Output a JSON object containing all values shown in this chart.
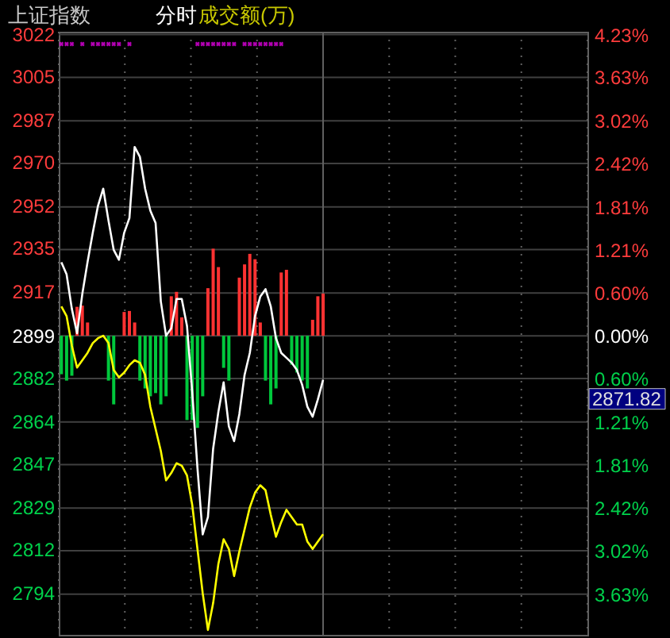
{
  "chart_data": {
    "type": "line",
    "title": "上证指数",
    "subtitle": "分时",
    "annotations": [
      "成交额(万)",
      "2871.82"
    ],
    "categories": [
      null,
      null,
      null,
      null,
      null,
      null,
      null,
      null,
      null,
      null,
      null,
      null,
      null,
      null,
      null,
      null,
      null,
      null,
      null,
      null,
      null,
      null,
      null,
      null,
      null,
      null,
      null,
      null,
      null,
      null,
      null,
      null,
      null,
      null,
      null,
      null,
      null,
      null,
      null,
      null,
      null,
      null,
      null,
      null,
      null,
      null,
      null,
      null,
      null,
      null,
      null,
      null,
      null,
      null,
      null,
      null,
      null,
      null,
      null,
      null,
      null,
      null,
      null,
      null,
      null,
      null,
      null,
      null,
      null,
      null,
      null,
      null,
      null,
      null,
      null,
      null,
      null,
      null,
      null,
      null,
      null,
      null,
      null,
      null,
      null,
      null,
      null,
      null,
      null,
      null,
      null,
      null,
      null,
      null,
      null,
      null,
      null,
      null,
      null,
      null,
      null
    ],
    "ylim": [
      2777,
      3023
    ],
    "yticks": [
      3022,
      3005,
      2987,
      2970,
      2952,
      2935,
      2917,
      2899,
      2882,
      2864,
      2847,
      2829,
      2812,
      2794
    ],
    "y2lim": [
      -4.2,
      4.27
    ],
    "y2ticks": [
      {
        "value": 4.23,
        "label": "4.23%"
      },
      {
        "value": 3.63,
        "label": "3.63%"
      },
      {
        "value": 3.02,
        "label": "3.02%"
      },
      {
        "value": 2.42,
        "label": "2.42%"
      },
      {
        "value": 1.81,
        "label": "1.81%"
      },
      {
        "value": 1.21,
        "label": "1.21%"
      },
      {
        "value": 0.6,
        "label": "0.60%"
      },
      {
        "value": 0,
        "label": "0.00%"
      },
      {
        "value": -0.6,
        "label": "0.60%"
      },
      {
        "value": -1.21,
        "label": "1.21%"
      },
      {
        "value": -1.81,
        "label": "1.81%"
      },
      {
        "value": -2.42,
        "label": "2.42%"
      },
      {
        "value": -3.02,
        "label": "3.02%"
      },
      {
        "value": -3.63,
        "label": "3.63%"
      }
    ],
    "grid": true,
    "tick_labels": "y",
    "line_style": "solid",
    "series": [
      {
        "type": "bar",
        "values": [
          -15.7,
          -18.3,
          -16.3,
          11.8,
          12.3,
          5.4,
          null,
          null,
          null,
          -18.3,
          -28.0,
          null,
          9.7,
          10.1,
          5.4,
          -18.3,
          -21.5,
          -24.7,
          -23.4,
          -28.0,
          -24.7,
          16.1,
          17.9,
          7.5,
          -34.4,
          -34.4,
          -37.6,
          -24.7,
          19.4,
          35.5,
          28.0,
          -13.1,
          -18.3,
          null,
          23.7,
          29.1,
          33.4,
          31.2,
          5.4,
          -18.3,
          -28.0,
          -21.5,
          25.8,
          26.9,
          -11.8,
          -15.0,
          -18.3,
          -21.5,
          6.5,
          16.1,
          17.2,
          null,
          null,
          null,
          null,
          null,
          null,
          null,
          null,
          null,
          null,
          null,
          null,
          null,
          null,
          null,
          null,
          null,
          null,
          null,
          null,
          null,
          null,
          null,
          null,
          null,
          null,
          null,
          null,
          null,
          null,
          null,
          null,
          null,
          null,
          null,
          null,
          null,
          null,
          null,
          null,
          null,
          null,
          null,
          null,
          null,
          null,
          null,
          null,
          null,
          null
        ],
        "base": [
          2899,
          2899,
          2899,
          2899,
          2899,
          2899,
          null,
          null,
          null,
          2899,
          2899,
          null,
          2899,
          2899,
          2899,
          2899,
          2899,
          2899,
          2899,
          2899,
          2899,
          2899,
          2899,
          2899,
          2899,
          2899,
          2899,
          2899,
          2899,
          2899,
          2899,
          2899,
          2899,
          null,
          2899,
          2899,
          2899,
          2899,
          2899,
          2899,
          2899,
          2899,
          2899,
          2899,
          2899,
          2899,
          2899,
          2899,
          2899,
          2899,
          2899,
          null,
          null,
          null,
          null,
          null,
          null,
          null,
          null,
          null,
          null,
          null,
          null,
          null,
          null,
          null,
          null,
          null,
          null,
          null,
          null,
          null,
          null,
          null,
          null,
          null,
          null,
          null,
          null,
          null,
          null,
          null,
          null,
          null,
          null,
          null,
          null,
          null,
          null,
          null,
          null,
          null,
          null,
          null,
          null,
          null,
          null,
          null,
          null,
          null,
          null
        ],
        "colors": [
          "#00c83c",
          "#00c83c",
          "#00c83c",
          "#ff3232",
          "#ff3232",
          "#ff3232",
          null,
          null,
          null,
          "#00c83c",
          "#00c83c",
          null,
          "#ff3232",
          "#ff3232",
          "#ff3232",
          "#00c83c",
          "#00c83c",
          "#00c83c",
          "#00c83c",
          "#00c83c",
          "#00c83c",
          "#ff3232",
          "#ff3232",
          "#ff3232",
          "#00c83c",
          "#00c83c",
          "#00c83c",
          "#00c83c",
          "#ff3232",
          "#ff3232",
          "#ff3232",
          "#00c83c",
          "#00c83c",
          null,
          "#ff3232",
          "#ff3232",
          "#ff3232",
          "#ff3232",
          "#ff3232",
          "#00c83c",
          "#00c83c",
          "#00c83c",
          "#ff3232",
          "#ff3232",
          "#00c83c",
          "#00c83c",
          "#00c83c",
          "#00c83c",
          "#ff3232",
          "#ff3232",
          "#ff3232",
          null,
          null,
          null,
          null,
          null,
          null,
          null,
          null,
          null,
          null,
          null,
          null,
          null,
          null,
          null,
          null,
          null,
          null,
          null,
          null,
          null,
          null,
          null,
          null,
          null,
          null,
          null,
          null,
          null,
          null,
          null,
          null,
          null,
          null,
          null,
          null,
          null,
          null,
          null,
          null,
          null,
          null,
          null,
          null,
          null,
          null,
          null,
          null,
          null,
          null
        ]
      },
      {
        "color": "#ffffff",
        "values": [
          2929,
          2924,
          2910,
          2900,
          2916,
          2929,
          2941,
          2952,
          2959,
          2946,
          2934,
          2930,
          2941,
          2947,
          2976,
          2972,
          2959,
          2950,
          2945,
          2913,
          2899,
          2902,
          2914,
          2914,
          2903,
          2876,
          2845,
          2818,
          2825,
          2853,
          2868,
          2880,
          2862,
          2856,
          2867,
          2883,
          2892,
          2907,
          2915,
          2918,
          2911,
          2898,
          2892,
          2890,
          2888,
          2885,
          2879,
          2870,
          2866,
          2873,
          2881,
          null,
          null,
          null,
          null,
          null,
          null,
          null,
          null,
          null,
          null,
          null,
          null,
          null,
          null,
          null,
          null,
          null,
          null,
          null,
          null,
          null,
          null,
          null,
          null,
          null,
          null,
          null,
          null,
          null,
          null,
          null,
          null,
          null,
          null,
          null,
          null,
          null,
          null,
          null,
          null,
          null,
          null,
          null,
          null,
          null,
          null,
          null,
          null,
          null,
          null
        ]
      },
      {
        "color": "#ffff00",
        "values": [
          2911,
          2907,
          2895,
          2886,
          2889,
          2892,
          2896,
          2898,
          2899,
          2896,
          2885,
          2882,
          2884,
          2887,
          2889,
          2888,
          2883,
          2870,
          2861,
          2852,
          2840,
          2843,
          2847,
          2846,
          2842,
          2830,
          2812,
          2794,
          2779,
          2790,
          2806,
          2816,
          2812,
          2801,
          2811,
          2820,
          2829,
          2835,
          2838,
          2836,
          2826,
          2817,
          2823,
          2828,
          2825,
          2822,
          2822,
          2815,
          2812,
          2815,
          2818,
          null,
          null,
          null,
          null,
          null,
          null,
          null,
          null,
          null,
          null,
          null,
          null,
          null,
          null,
          null,
          null,
          null,
          null,
          null,
          null,
          null,
          null,
          null,
          null,
          null,
          null,
          null,
          null,
          null,
          null,
          null,
          null,
          null,
          null,
          null,
          null,
          null,
          null,
          null,
          null,
          null,
          null,
          null,
          null,
          null,
          null,
          null,
          null,
          null,
          null
        ]
      },
      {
        "type": "scatter",
        "marker": "cross",
        "color": "#ff00ff",
        "values": [
          3018,
          3018,
          3018,
          null,
          3018,
          null,
          3018,
          3018,
          3018,
          3018,
          3018,
          3018,
          null,
          3018,
          null,
          null,
          null,
          null,
          null,
          null,
          null,
          null,
          null,
          null,
          null,
          null,
          3018,
          3018,
          3018,
          3018,
          3018,
          3018,
          3018,
          3018,
          null,
          3018,
          3018,
          3018,
          3018,
          3018,
          3018,
          3018,
          3018,
          null,
          null,
          null,
          null,
          null,
          null,
          null,
          null,
          null,
          null,
          null,
          null,
          null,
          null,
          null,
          null,
          null,
          null,
          null,
          null,
          null,
          null,
          null,
          null,
          null,
          null,
          null,
          null,
          null,
          null,
          null,
          null,
          null,
          null,
          null,
          null,
          null,
          null,
          null,
          null,
          null,
          null,
          null,
          null,
          null,
          null,
          null,
          null,
          null,
          null,
          null,
          null,
          null,
          null,
          null,
          null,
          null,
          null
        ]
      }
    ]
  }
}
